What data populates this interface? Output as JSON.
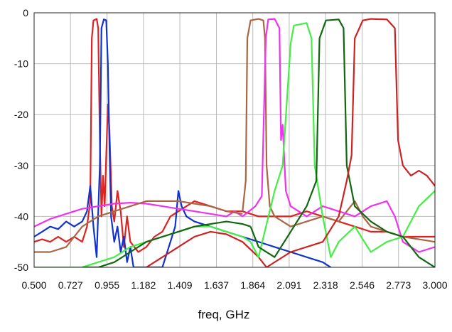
{
  "chart_data": {
    "type": "line",
    "title": "",
    "xlabel": "freq, GHz",
    "ylabel": "",
    "xlim": [
      0.5,
      3.0
    ],
    "ylim": [
      -50,
      0
    ],
    "grid": true,
    "legend": "none",
    "x_tick_labels": [
      "0.500",
      "0.727",
      "0.955",
      "1.182",
      "1.409",
      "1.637",
      "1.864",
      "2.091",
      "2.318",
      "2.546",
      "2.773",
      "3.000"
    ],
    "x_ticks": [
      0.5,
      0.727,
      0.955,
      1.182,
      1.409,
      1.637,
      1.864,
      2.091,
      2.318,
      2.546,
      2.773,
      3.0
    ],
    "y_tick_labels": [
      "0",
      "-10",
      "-20",
      "-30",
      "-40",
      "-50"
    ],
    "y_ticks": [
      0,
      -10,
      -20,
      -30,
      -40,
      -50
    ],
    "series": [
      {
        "name": "red_lowband",
        "color": "#dd2222",
        "points": [
          [
            0.5,
            -45
          ],
          [
            0.55,
            -44.5
          ],
          [
            0.6,
            -45
          ],
          [
            0.65,
            -44
          ],
          [
            0.7,
            -45
          ],
          [
            0.75,
            -44
          ],
          [
            0.8,
            -45
          ],
          [
            0.83,
            -42
          ],
          [
            0.85,
            -37
          ],
          [
            0.86,
            -5
          ],
          [
            0.87,
            -1.5
          ],
          [
            0.89,
            -1.2
          ],
          [
            0.9,
            -3
          ],
          [
            0.91,
            -25
          ],
          [
            0.92,
            -40
          ],
          [
            0.93,
            -32
          ],
          [
            0.94,
            -38
          ],
          [
            0.95,
            -28
          ],
          [
            0.96,
            -18
          ],
          [
            0.97,
            -23
          ],
          [
            0.985,
            -38
          ],
          [
            1.0,
            -41
          ],
          [
            1.02,
            -35
          ],
          [
            1.04,
            -39
          ],
          [
            1.06,
            -46
          ],
          [
            1.08,
            -40
          ],
          [
            1.1,
            -45
          ],
          [
            1.15,
            -47
          ],
          [
            1.2,
            -46
          ],
          [
            1.25,
            -44
          ],
          [
            1.3,
            -43
          ],
          [
            1.35,
            -40
          ],
          [
            1.4,
            -39
          ],
          [
            1.5,
            -37
          ],
          [
            1.6,
            -38
          ],
          [
            1.7,
            -39
          ],
          [
            1.8,
            -39
          ],
          [
            1.9,
            -40
          ],
          [
            2.0,
            -40
          ],
          [
            2.1,
            -40
          ],
          [
            2.2,
            -39
          ],
          [
            2.3,
            -40
          ],
          [
            2.4,
            -41
          ],
          [
            2.5,
            -42
          ],
          [
            2.6,
            -43
          ],
          [
            2.7,
            -43
          ],
          [
            2.8,
            -44
          ],
          [
            2.9,
            -44
          ],
          [
            3.0,
            -44
          ]
        ]
      },
      {
        "name": "blue_lowband",
        "color": "#1133cc",
        "points": [
          [
            0.5,
            -44
          ],
          [
            0.55,
            -43
          ],
          [
            0.6,
            -42
          ],
          [
            0.65,
            -42.5
          ],
          [
            0.7,
            -41
          ],
          [
            0.75,
            -42
          ],
          [
            0.8,
            -41
          ],
          [
            0.83,
            -39
          ],
          [
            0.85,
            -34
          ],
          [
            0.87,
            -42
          ],
          [
            0.89,
            -48
          ],
          [
            0.91,
            -30
          ],
          [
            0.92,
            -3
          ],
          [
            0.935,
            -1.3
          ],
          [
            0.95,
            -1.5
          ],
          [
            0.96,
            -10
          ],
          [
            0.97,
            -26
          ],
          [
            0.98,
            -40
          ],
          [
            1.0,
            -45
          ],
          [
            1.02,
            -42
          ],
          [
            1.04,
            -47
          ],
          [
            1.06,
            -44
          ],
          [
            1.08,
            -49
          ],
          [
            1.1,
            -46
          ],
          [
            1.12,
            -50
          ],
          [
            1.2,
            -50
          ],
          [
            1.3,
            -50
          ],
          [
            1.35,
            -45
          ],
          [
            1.38,
            -42
          ],
          [
            1.4,
            -35
          ],
          [
            1.42,
            -38
          ],
          [
            1.45,
            -40
          ],
          [
            1.5,
            -41
          ],
          [
            1.6,
            -42
          ],
          [
            1.7,
            -43
          ],
          [
            1.8,
            -44
          ],
          [
            1.9,
            -45
          ],
          [
            2.0,
            -46
          ],
          [
            2.1,
            -47
          ],
          [
            2.2,
            -48
          ],
          [
            2.3,
            -49
          ],
          [
            2.35,
            -50
          ]
        ]
      },
      {
        "name": "magenta_hump",
        "color": "#ee33ee",
        "points": [
          [
            0.5,
            -42
          ],
          [
            0.6,
            -40.5
          ],
          [
            0.7,
            -39.5
          ],
          [
            0.8,
            -38.5
          ],
          [
            0.9,
            -38
          ],
          [
            1.0,
            -37.5
          ],
          [
            1.1,
            -37.3
          ],
          [
            1.2,
            -37.5
          ],
          [
            1.3,
            -38
          ],
          [
            1.4,
            -38.5
          ],
          [
            1.5,
            -39
          ],
          [
            1.6,
            -39.5
          ],
          [
            1.7,
            -40
          ],
          [
            1.75,
            -39
          ],
          [
            1.8,
            -40
          ]
        ]
      },
      {
        "name": "brown_hump",
        "color": "#aa6644",
        "points": [
          [
            0.5,
            -47
          ],
          [
            0.6,
            -47
          ],
          [
            0.7,
            -46
          ],
          [
            0.75,
            -44
          ],
          [
            0.8,
            -42
          ],
          [
            0.9,
            -40
          ],
          [
            1.0,
            -39
          ],
          [
            1.1,
            -38
          ],
          [
            1.2,
            -37
          ],
          [
            1.3,
            -37
          ],
          [
            1.4,
            -37
          ],
          [
            1.5,
            -37.5
          ],
          [
            1.6,
            -38
          ],
          [
            1.7,
            -39
          ],
          [
            1.8,
            -39.5
          ]
        ]
      },
      {
        "name": "green_hump",
        "color": "#44ee44",
        "points": [
          [
            0.5,
            -50
          ],
          [
            0.8,
            -50
          ],
          [
            0.9,
            -49
          ],
          [
            1.0,
            -48
          ],
          [
            1.1,
            -46
          ],
          [
            1.2,
            -45
          ],
          [
            1.3,
            -44
          ],
          [
            1.4,
            -43
          ],
          [
            1.5,
            -42
          ],
          [
            1.6,
            -42
          ],
          [
            1.7,
            -43
          ],
          [
            1.8,
            -44
          ],
          [
            1.85,
            -45
          ]
        ]
      },
      {
        "name": "darkgreen_hump",
        "color": "#116611",
        "points": [
          [
            0.8,
            -50
          ],
          [
            0.9,
            -50
          ],
          [
            1.0,
            -49
          ],
          [
            1.1,
            -47
          ],
          [
            1.2,
            -45
          ],
          [
            1.3,
            -44
          ],
          [
            1.4,
            -43
          ],
          [
            1.5,
            -42
          ],
          [
            1.6,
            -41.5
          ],
          [
            1.7,
            -41
          ],
          [
            1.8,
            -41.5
          ],
          [
            1.85,
            -42
          ]
        ]
      },
      {
        "name": "red_hump",
        "color": "#cc2222",
        "points": [
          [
            1.2,
            -50
          ],
          [
            1.3,
            -48
          ],
          [
            1.4,
            -46
          ],
          [
            1.5,
            -44
          ],
          [
            1.6,
            -43
          ],
          [
            1.7,
            -43.5
          ],
          [
            1.8,
            -45
          ],
          [
            1.9,
            -48
          ],
          [
            1.95,
            -50
          ]
        ]
      },
      {
        "name": "brown_filter",
        "color": "#aa6644",
        "points": [
          [
            1.8,
            -39
          ],
          [
            1.82,
            -33
          ],
          [
            1.83,
            -5
          ],
          [
            1.85,
            -1.5
          ],
          [
            1.9,
            -1.2
          ],
          [
            1.93,
            -1.5
          ],
          [
            1.94,
            -5
          ],
          [
            1.95,
            -30
          ],
          [
            1.97,
            -38
          ],
          [
            2.0,
            -40
          ],
          [
            2.1,
            -42
          ],
          [
            2.2,
            -41
          ],
          [
            2.3,
            -40
          ],
          [
            2.4,
            -41
          ],
          [
            2.5,
            -37
          ],
          [
            2.55,
            -40
          ],
          [
            2.6,
            -42
          ],
          [
            2.7,
            -43
          ],
          [
            2.8,
            -44
          ],
          [
            2.9,
            -44.5
          ],
          [
            3.0,
            -45
          ]
        ]
      },
      {
        "name": "magenta_filter",
        "color": "#ee33ee",
        "points": [
          [
            1.8,
            -40
          ],
          [
            1.88,
            -38
          ],
          [
            1.92,
            -36
          ],
          [
            1.945,
            -5
          ],
          [
            1.96,
            -1.3
          ],
          [
            2.0,
            -1.2
          ],
          [
            2.03,
            -3
          ],
          [
            2.04,
            -25
          ],
          [
            2.05,
            -22
          ],
          [
            2.07,
            -35
          ],
          [
            2.1,
            -38
          ],
          [
            2.2,
            -40
          ],
          [
            2.3,
            -38
          ],
          [
            2.4,
            -39
          ],
          [
            2.5,
            -40
          ],
          [
            2.6,
            -38
          ],
          [
            2.7,
            -37
          ],
          [
            2.75,
            -40
          ],
          [
            2.8,
            -45
          ],
          [
            2.9,
            -47
          ],
          [
            3.0,
            -46
          ]
        ]
      },
      {
        "name": "green_filter",
        "color": "#44ee44",
        "points": [
          [
            1.85,
            -45
          ],
          [
            1.9,
            -48
          ],
          [
            2.0,
            -35
          ],
          [
            2.05,
            -30
          ],
          [
            2.1,
            -6
          ],
          [
            2.12,
            -2.5
          ],
          [
            2.2,
            -2
          ],
          [
            2.23,
            -5
          ],
          [
            2.25,
            -30
          ],
          [
            2.3,
            -40
          ],
          [
            2.35,
            -48
          ],
          [
            2.4,
            -45
          ],
          [
            2.5,
            -42
          ],
          [
            2.6,
            -47
          ],
          [
            2.7,
            -45
          ],
          [
            2.8,
            -44
          ],
          [
            2.9,
            -38
          ],
          [
            3.0,
            -35
          ]
        ]
      },
      {
        "name": "darkgreen_filter",
        "color": "#116611",
        "points": [
          [
            1.85,
            -42
          ],
          [
            1.9,
            -46
          ],
          [
            2.0,
            -48
          ],
          [
            2.1,
            -43
          ],
          [
            2.2,
            -38
          ],
          [
            2.26,
            -33
          ],
          [
            2.28,
            -5
          ],
          [
            2.32,
            -1.5
          ],
          [
            2.4,
            -1.3
          ],
          [
            2.43,
            -3
          ],
          [
            2.45,
            -30
          ],
          [
            2.5,
            -38
          ],
          [
            2.6,
            -41
          ],
          [
            2.7,
            -43
          ],
          [
            2.8,
            -44
          ],
          [
            2.9,
            -48
          ],
          [
            3.0,
            -50
          ]
        ]
      },
      {
        "name": "red_filter",
        "color": "#cc2222",
        "points": [
          [
            1.95,
            -50
          ],
          [
            2.1,
            -47
          ],
          [
            2.3,
            -45
          ],
          [
            2.4,
            -40
          ],
          [
            2.45,
            -33
          ],
          [
            2.48,
            -28
          ],
          [
            2.5,
            -5
          ],
          [
            2.55,
            -1.5
          ],
          [
            2.6,
            -1.2
          ],
          [
            2.7,
            -1.3
          ],
          [
            2.75,
            -3
          ],
          [
            2.77,
            -25
          ],
          [
            2.8,
            -30
          ],
          [
            2.85,
            -32
          ],
          [
            2.9,
            -31
          ],
          [
            2.95,
            -32
          ],
          [
            3.0,
            -34
          ]
        ]
      }
    ]
  }
}
